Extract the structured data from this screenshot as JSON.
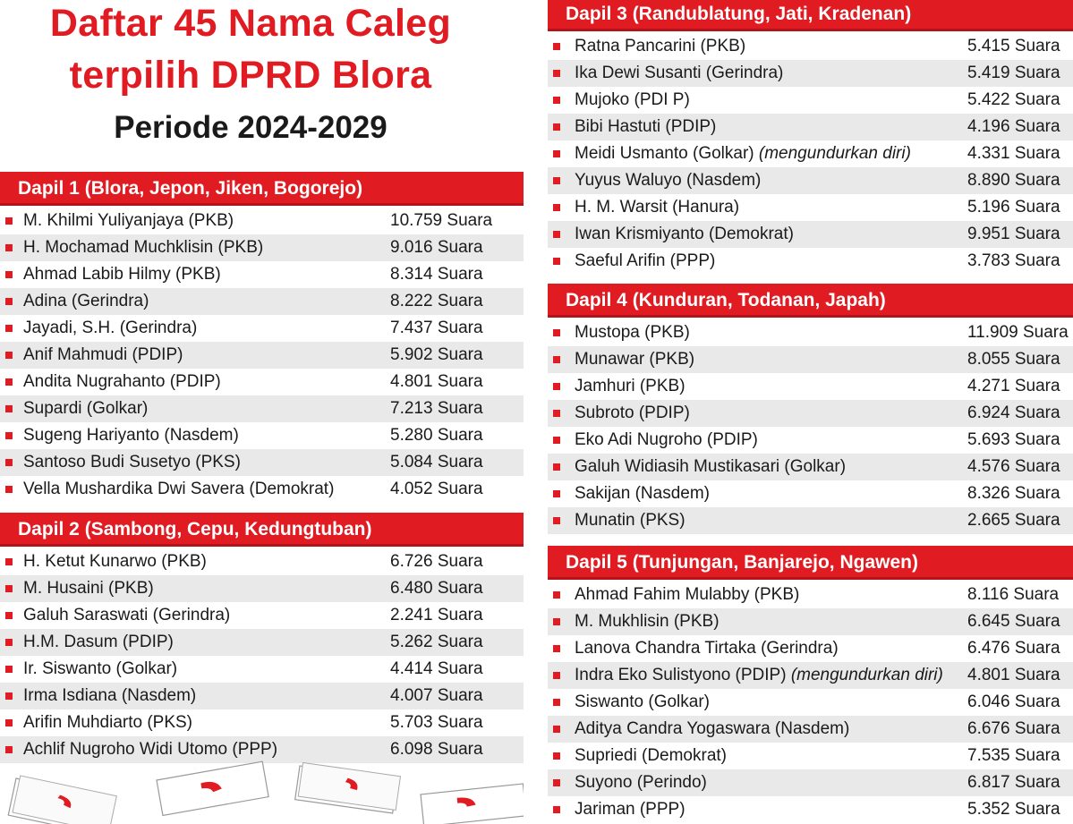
{
  "title": {
    "line1": "Daftar 45 Nama Caleg",
    "line2": "terpilih DPRD Blora",
    "line3": "Periode 2024-2029"
  },
  "colors": {
    "accent": "#e11b22",
    "stripe": "#e9e9e9",
    "text": "#1a1a1a"
  },
  "dapil": [
    {
      "title": "Dapil 1 (Blora, Jepon, Jiken, Bogorejo)",
      "candidates": [
        {
          "name": "M. Khilmi Yuliyanjaya (PKB)",
          "note": "",
          "votes": "10.759 Suara"
        },
        {
          "name": "H. Mochamad Muchklisin (PKB)",
          "note": "",
          "votes": "9.016 Suara"
        },
        {
          "name": "Ahmad Labib Hilmy (PKB)",
          "note": "",
          "votes": "8.314 Suara"
        },
        {
          "name": "Adina (Gerindra)",
          "note": "",
          "votes": "8.222 Suara"
        },
        {
          "name": "Jayadi, S.H. (Gerindra)",
          "note": "",
          "votes": "7.437 Suara"
        },
        {
          "name": "Anif Mahmudi (PDIP)",
          "note": "",
          "votes": "5.902 Suara"
        },
        {
          "name": "Andita Nugrahanto (PDIP)",
          "note": "",
          "votes": "4.801 Suara"
        },
        {
          "name": "Supardi (Golkar)",
          "note": "",
          "votes": "7.213 Suara"
        },
        {
          "name": "Sugeng Hariyanto (Nasdem)",
          "note": "",
          "votes": "5.280 Suara"
        },
        {
          "name": "Santoso Budi Susetyo (PKS)",
          "note": "",
          "votes": "5.084 Suara"
        },
        {
          "name": "Vella Mushardika Dwi Savera (Demokrat)",
          "note": "",
          "votes": "4.052 Suara"
        }
      ]
    },
    {
      "title": "Dapil 2 (Sambong, Cepu, Kedungtuban)",
      "candidates": [
        {
          "name": "H. Ketut Kunarwo (PKB)",
          "note": "",
          "votes": "6.726 Suara"
        },
        {
          "name": "M. Husaini (PKB)",
          "note": "",
          "votes": "6.480 Suara"
        },
        {
          "name": "Galuh Saraswati (Gerindra)",
          "note": "",
          "votes": "2.241 Suara"
        },
        {
          "name": "H.M. Dasum (PDIP)",
          "note": "",
          "votes": "5.262 Suara"
        },
        {
          "name": "Ir. Siswanto (Golkar)",
          "note": "",
          "votes": "4.414 Suara"
        },
        {
          "name": "Irma Isdiana (Nasdem)",
          "note": "",
          "votes": "4.007 Suara"
        },
        {
          "name": "Arifin Muhdiarto (PKS)",
          "note": "",
          "votes": "5.703 Suara"
        },
        {
          "name": "Achlif Nugroho Widi Utomo (PPP)",
          "note": "",
          "votes": "6.098 Suara"
        }
      ]
    },
    {
      "title": "Dapil 3 (Randublatung, Jati, Kradenan)",
      "candidates": [
        {
          "name": "Ratna Pancarini (PKB)",
          "note": "",
          "votes": "5.415 Suara"
        },
        {
          "name": "Ika Dewi Susanti (Gerindra)",
          "note": "",
          "votes": "5.419 Suara"
        },
        {
          "name": "Mujoko (PDI P)",
          "note": "",
          "votes": "5.422 Suara"
        },
        {
          "name": "Bibi Hastuti (PDIP)",
          "note": "",
          "votes": "4.196 Suara"
        },
        {
          "name": "Meidi Usmanto (Golkar)",
          "note": "(mengundurkan diri)",
          "votes": "4.331 Suara"
        },
        {
          "name": "Yuyus Waluyo (Nasdem)",
          "note": "",
          "votes": "8.890 Suara"
        },
        {
          "name": "H. M. Warsit (Hanura)",
          "note": "",
          "votes": "5.196 Suara"
        },
        {
          "name": "Iwan Krismiyanto (Demokrat)",
          "note": "",
          "votes": "9.951 Suara"
        },
        {
          "name": "Saeful Arifin (PPP)",
          "note": "",
          "votes": "3.783 Suara"
        }
      ]
    },
    {
      "title": "Dapil 4 (Kunduran, Todanan, Japah)",
      "candidates": [
        {
          "name": "Mustopa (PKB)",
          "note": "",
          "votes": "11.909 Suara"
        },
        {
          "name": "Munawar (PKB)",
          "note": "",
          "votes": "8.055 Suara"
        },
        {
          "name": "Jamhuri (PKB)",
          "note": "",
          "votes": "4.271 Suara"
        },
        {
          "name": "Subroto (PDIP)",
          "note": "",
          "votes": "6.924 Suara"
        },
        {
          "name": "Eko Adi Nugroho (PDIP)",
          "note": "",
          "votes": "5.693 Suara"
        },
        {
          "name": "Galuh Widiasih Mustikasari (Golkar)",
          "note": "",
          "votes": "4.576 Suara"
        },
        {
          "name": "Sakijan (Nasdem)",
          "note": "",
          "votes": "8.326 Suara"
        },
        {
          "name": "Munatin (PKS)",
          "note": "",
          "votes": "2.665 Suara"
        }
      ]
    },
    {
      "title": "Dapil 5 (Tunjungan, Banjarejo, Ngawen)",
      "candidates": [
        {
          "name": "Ahmad Fahim Mulabby (PKB)",
          "note": "",
          "votes": "8.116 Suara"
        },
        {
          "name": "M. Mukhlisin (PKB)",
          "note": "",
          "votes": "6.645 Suara"
        },
        {
          "name": "Lanova Chandra Tirtaka (Gerindra)",
          "note": "",
          "votes": "6.476 Suara"
        },
        {
          "name": "Indra Eko Sulistyono (PDIP)",
          "note": "(mengundurkan diri)",
          "votes": "4.801 Suara"
        },
        {
          "name": "Siswanto (Golkar)",
          "note": "",
          "votes": "6.046 Suara"
        },
        {
          "name": "Aditya Candra Yogaswara (Nasdem)",
          "note": "",
          "votes": "6.676 Suara"
        },
        {
          "name": "Supriedi (Demokrat)",
          "note": "",
          "votes": "7.535 Suara"
        },
        {
          "name": "Suyono (Perindo)",
          "note": "",
          "votes": "6.817 Suara"
        },
        {
          "name": "Jariman (PPP)",
          "note": "",
          "votes": "5.352 Suara"
        }
      ]
    }
  ]
}
